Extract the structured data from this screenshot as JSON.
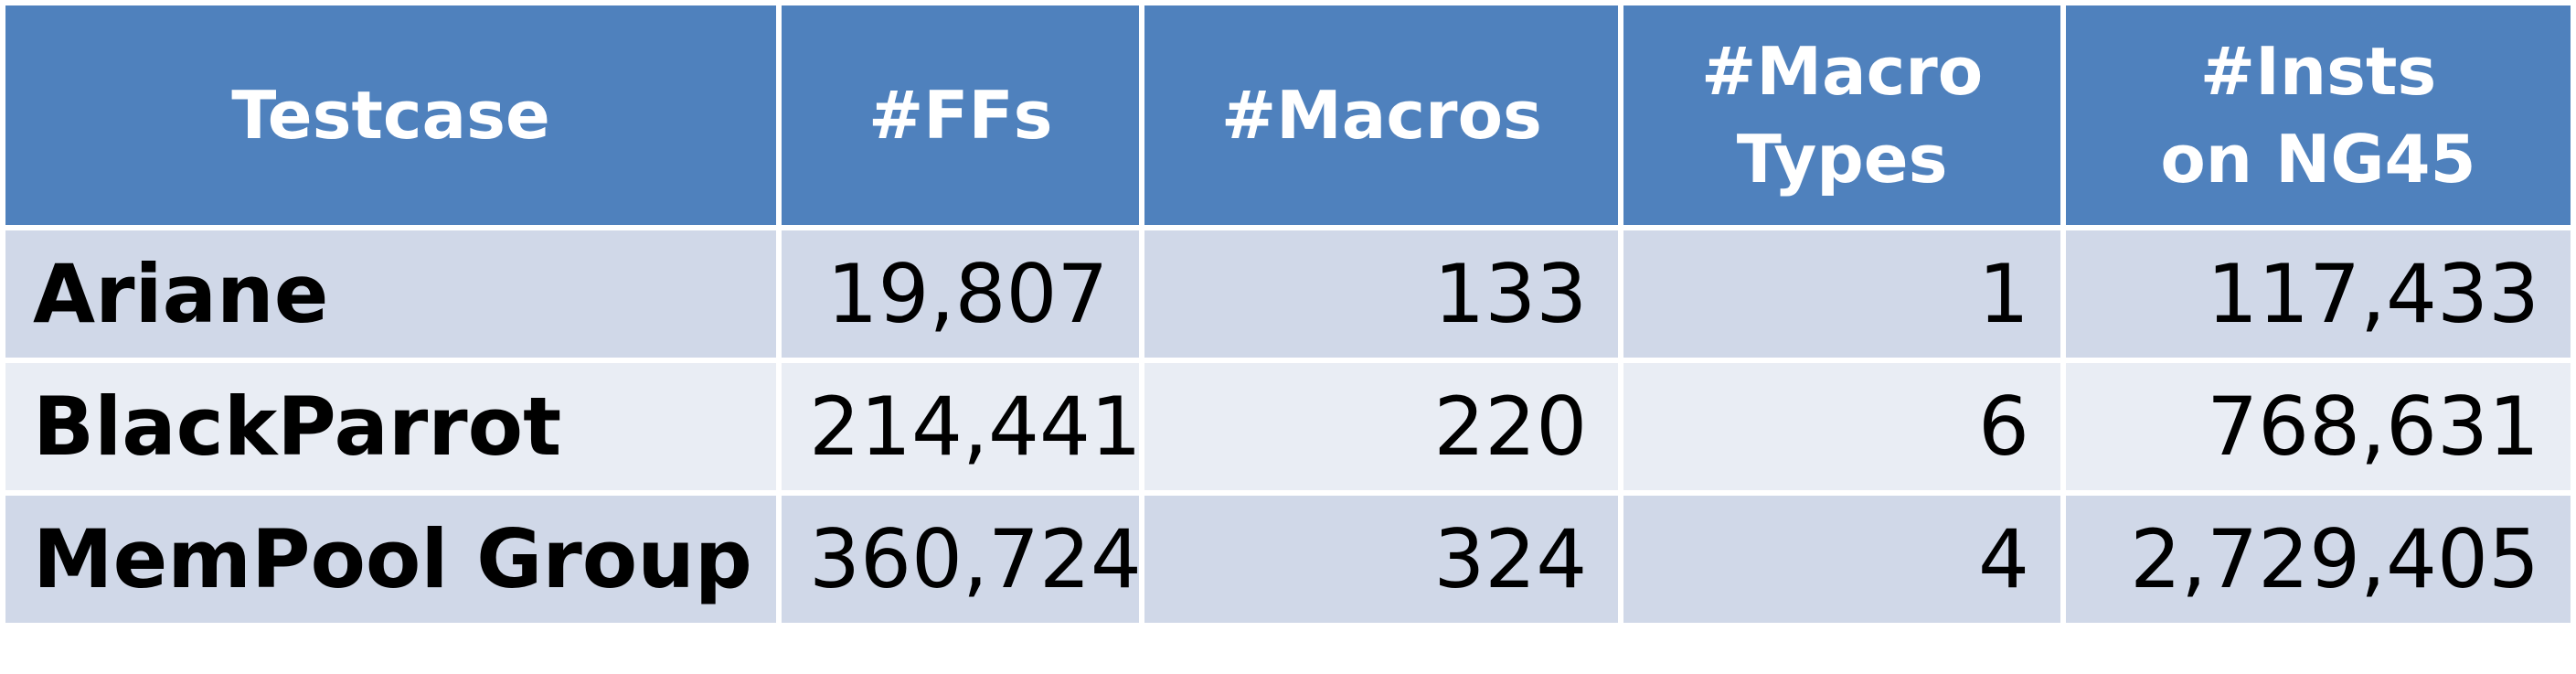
{
  "table": {
    "headers": [
      "Testcase",
      "#FFs",
      "#Macros",
      "#Macro\nTypes",
      "#Insts\non NG45"
    ],
    "rows": [
      [
        "Ariane",
        "19,807",
        "133",
        "1",
        "117,433"
      ],
      [
        "BlackParrot",
        "214,441",
        "220",
        "6",
        "768,631"
      ],
      [
        "MemPool Group",
        "360,724",
        "324",
        "4",
        "2,729,405"
      ]
    ]
  },
  "colors": {
    "header_bg": "#4f81bd",
    "row_dark": "#d0d8e8",
    "row_light": "#e9edf4"
  }
}
